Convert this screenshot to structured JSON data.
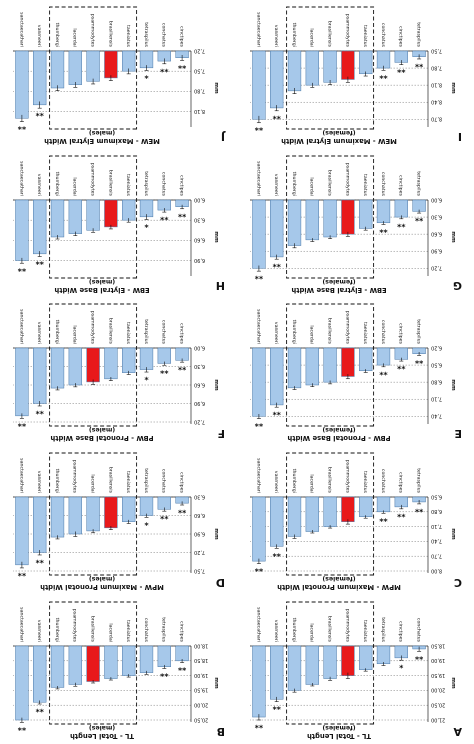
{
  "figure": {
    "bar_color": "#a6c8ea",
    "highlight_color": "#e8191b",
    "bar_edge": "#4a78a8",
    "sig_marker": "**"
  },
  "chart_data": [
    {
      "type": "bar",
      "letter": "A",
      "title": "TL - Total Length",
      "subtitle": "(females)",
      "ylabel": "mm",
      "categories": [
        "conchatus",
        "cinctipes",
        "tetraspilus",
        "taeniatus",
        "psammodytes",
        "brasiliensis",
        "lacerdai",
        "thumbergi",
        "vanmeeri",
        "sanctaecathari"
      ],
      "values": [
        18.6,
        18.9,
        19.1,
        19.3,
        19.5,
        19.6,
        19.8,
        20.0,
        20.3,
        20.9
      ],
      "errors": [
        0.08,
        0.08,
        0.06,
        0.05,
        0.1,
        0.06,
        0.05,
        0.06,
        0.08,
        0.1
      ],
      "sig": [
        "**",
        "*",
        "",
        "",
        "",
        "",
        "",
        "",
        "**",
        "**"
      ],
      "highlight": 4,
      "boxed": [
        3,
        7
      ],
      "ylim": [
        18.5,
        21.0
      ],
      "yticks": [
        "18,50",
        "19,00",
        "19,50",
        "20,00",
        "20,50",
        "21,00"
      ]
    },
    {
      "type": "bar",
      "letter": "B",
      "title": "TL - Total Length",
      "subtitle": "(males)",
      "ylabel": "mm",
      "categories": [
        "cinctipes",
        "tetraspilus",
        "conchatus",
        "taeniatus",
        "lacerdai",
        "brasiliensis",
        "psammodytes",
        "thumbergi",
        "vanmeeri",
        "sanctaecathari"
      ],
      "values": [
        18.5,
        18.7,
        18.9,
        19.0,
        19.1,
        19.2,
        19.3,
        19.4,
        19.9,
        20.5
      ],
      "errors": [
        0.06,
        0.06,
        0.06,
        0.05,
        0.05,
        0.05,
        0.06,
        0.05,
        0.06,
        0.08
      ],
      "sig": [
        "**",
        "**",
        "",
        "",
        "",
        "",
        "",
        "",
        "**",
        "**"
      ],
      "highlight": 5,
      "boxed": [
        3,
        7
      ],
      "ylim": [
        18.0,
        20.5
      ],
      "yticks": [
        "18,00",
        "18,50",
        "19,00",
        "19,50",
        "20,00",
        "20,50"
      ]
    },
    {
      "type": "bar",
      "letter": "C",
      "title": "MPW - Maximum Pronotal Width",
      "subtitle": "(females)",
      "ylabel": "mm",
      "categories": [
        "tetraspilus",
        "cinctipes",
        "conchatus",
        "taeniatus",
        "psammodytes",
        "brasiliensis",
        "lacerdai",
        "thumbergi",
        "vanmeeri",
        "sanctaecathari"
      ],
      "values": [
        6.6,
        6.7,
        6.8,
        6.9,
        7.0,
        7.1,
        7.2,
        7.3,
        7.5,
        7.8
      ],
      "errors": [
        0.04,
        0.04,
        0.03,
        0.03,
        0.05,
        0.03,
        0.03,
        0.04,
        0.04,
        0.05
      ],
      "sig": [
        "**",
        "**",
        "**",
        "",
        "",
        "",
        "",
        "",
        "**",
        "**"
      ],
      "highlight": 4,
      "boxed": [
        3,
        7
      ],
      "ylim": [
        6.5,
        8.0
      ],
      "yticks": [
        "6,50",
        "6,80",
        "7,10",
        "7,40",
        "7,70",
        "8,00"
      ]
    },
    {
      "type": "bar",
      "letter": "D",
      "title": "MPW - Maximum Pronotal Width",
      "subtitle": "(males)",
      "ylabel": "mm",
      "categories": [
        "cinctipes",
        "conchatus",
        "tetraspilus",
        "taeniatus",
        "brasiliensis",
        "lacerdai",
        "psammodytes",
        "thumbergi",
        "vanmeeri",
        "sanctaecathari"
      ],
      "values": [
        6.4,
        6.5,
        6.6,
        6.7,
        6.8,
        6.85,
        6.9,
        6.95,
        7.2,
        7.4
      ],
      "errors": [
        0.03,
        0.03,
        0.03,
        0.03,
        0.03,
        0.03,
        0.04,
        0.03,
        0.04,
        0.05
      ],
      "sig": [
        "**",
        "**",
        "*",
        "",
        "",
        "",
        "",
        "",
        "**",
        "**"
      ],
      "highlight": 4,
      "boxed": [
        3,
        7
      ],
      "ylim": [
        6.3,
        7.5
      ],
      "yticks": [
        "6,30",
        "6,60",
        "6,90",
        "7,20",
        "7,50"
      ]
    },
    {
      "type": "bar",
      "letter": "E",
      "title": "PBW - Pronotal Base Width",
      "subtitle": "(females)",
      "ylabel": "mm",
      "categories": [
        "tetraspilus",
        "cinctipes",
        "conchatus",
        "taeniatus",
        "psammodytes",
        "brasiliensis",
        "lacerdai",
        "thumbergi",
        "vanmeeri",
        "sanctaecathari"
      ],
      "values": [
        6.3,
        6.4,
        6.5,
        6.6,
        6.7,
        6.8,
        6.85,
        6.9,
        7.2,
        7.4
      ],
      "errors": [
        0.03,
        0.03,
        0.03,
        0.03,
        0.04,
        0.03,
        0.03,
        0.03,
        0.04,
        0.04
      ],
      "sig": [
        "**",
        "**",
        "**",
        "",
        "",
        "",
        "",
        "",
        "**",
        "**"
      ],
      "highlight": 4,
      "boxed": [
        3,
        7
      ],
      "ylim": [
        6.2,
        7.5
      ],
      "yticks": [
        "6,20",
        "6,50",
        "6,80",
        "7,10",
        "7,40"
      ]
    },
    {
      "type": "bar",
      "letter": "F",
      "title": "PBW - Pronotal Base Width",
      "subtitle": "(males)",
      "ylabel": "mm",
      "categories": [
        "cinctipes",
        "conchatus",
        "tetraspilus",
        "taeniatus",
        "brasiliensis",
        "psammodytes",
        "lacerdai",
        "thumbergi",
        "vanmeeri",
        "sanctaecathari"
      ],
      "values": [
        6.2,
        6.25,
        6.35,
        6.4,
        6.5,
        6.55,
        6.6,
        6.65,
        6.9,
        7.1
      ],
      "errors": [
        0.03,
        0.03,
        0.04,
        0.03,
        0.03,
        0.04,
        0.03,
        0.03,
        0.04,
        0.04
      ],
      "sig": [
        "**",
        "**",
        "*",
        "",
        "",
        "",
        "",
        "",
        "**",
        "**"
      ],
      "highlight": 5,
      "boxed": [
        3,
        7
      ],
      "ylim": [
        6.0,
        7.2
      ],
      "yticks": [
        "6,00",
        "6,30",
        "6,60",
        "6,90",
        "7,20"
      ]
    },
    {
      "type": "bar",
      "letter": "G",
      "title": "EBW - Elytral Base Width",
      "subtitle": "(females)",
      "ylabel": "mm",
      "categories": [
        "tetraspilus",
        "cinctipes",
        "conchatus",
        "taeniatus",
        "psammodytes",
        "brasiliensis",
        "lacerdai",
        "thumbergi",
        "vanmeeri",
        "sanctaecathari"
      ],
      "values": [
        6.2,
        6.3,
        6.4,
        6.5,
        6.6,
        6.65,
        6.7,
        6.8,
        7.0,
        7.2
      ],
      "errors": [
        0.03,
        0.03,
        0.03,
        0.03,
        0.04,
        0.03,
        0.03,
        0.04,
        0.04,
        0.05
      ],
      "sig": [
        "**",
        "**",
        "**",
        "",
        "",
        "",
        "",
        "",
        "**",
        "**"
      ],
      "highlight": 4,
      "boxed": [
        3,
        7
      ],
      "ylim": [
        6.0,
        7.3
      ],
      "yticks": [
        "6,00",
        "6,30",
        "6,60",
        "6,90",
        "7,20"
      ]
    },
    {
      "type": "bar",
      "letter": "H",
      "title": "EBW - Elytral Base Width",
      "subtitle": "(males)",
      "ylabel": "mm",
      "categories": [
        "cinctipes",
        "conchatus",
        "tetraspilus",
        "taeniatus",
        "brasiliensis",
        "psammodytes",
        "lacerdai",
        "thumbergi",
        "vanmeeri",
        "sanctaecathari"
      ],
      "values": [
        6.1,
        6.15,
        6.25,
        6.3,
        6.4,
        6.45,
        6.5,
        6.55,
        6.8,
        6.9
      ],
      "errors": [
        0.03,
        0.03,
        0.04,
        0.03,
        0.03,
        0.03,
        0.03,
        0.03,
        0.04,
        0.04
      ],
      "sig": [
        "**",
        "**",
        "*",
        "",
        "",
        "",
        "",
        "",
        "**",
        "**"
      ],
      "highlight": 4,
      "boxed": [
        3,
        7
      ],
      "ylim": [
        6.0,
        7.1
      ],
      "yticks": [
        "6,00",
        "6,30",
        "6,60",
        "6,90"
      ]
    },
    {
      "type": "bar",
      "letter": "I",
      "title": "MEW - Maximum Elytral Width",
      "subtitle": "(females)",
      "ylabel": "mm",
      "categories": [
        "tetraspilus",
        "cinctipes",
        "conchatus",
        "taeniatus",
        "psammodytes",
        "brasiliensis",
        "lacerdai",
        "thumbergi",
        "vanmeeri",
        "sanctaecathari"
      ],
      "values": [
        7.6,
        7.7,
        7.8,
        7.9,
        8.0,
        8.05,
        8.1,
        8.2,
        8.5,
        8.7
      ],
      "errors": [
        0.04,
        0.04,
        0.04,
        0.04,
        0.05,
        0.04,
        0.04,
        0.05,
        0.05,
        0.06
      ],
      "sig": [
        "**",
        "**",
        "**",
        "",
        "",
        "",
        "",
        "",
        "**",
        "**"
      ],
      "highlight": 4,
      "boxed": [
        3,
        7
      ],
      "ylim": [
        7.5,
        8.8
      ],
      "yticks": [
        "7,50",
        "7,80",
        "8,10",
        "8,40",
        "8,70"
      ]
    },
    {
      "type": "bar",
      "letter": "J",
      "title": "MEW - Maximum Elytral Width",
      "subtitle": "(males)",
      "ylabel": "mm",
      "categories": [
        "cinctipes",
        "conchatus",
        "tetraspilus",
        "taeniatus",
        "brasiliensis",
        "psammodytes",
        "lacerdai",
        "thumbergi",
        "vanmeeri",
        "sanctaecathari"
      ],
      "values": [
        7.3,
        7.35,
        7.45,
        7.5,
        7.6,
        7.65,
        7.7,
        7.75,
        8.0,
        8.2
      ],
      "errors": [
        0.04,
        0.04,
        0.04,
        0.04,
        0.04,
        0.04,
        0.04,
        0.04,
        0.05,
        0.05
      ],
      "sig": [
        "**",
        "**",
        "*",
        "",
        "",
        "",
        "",
        "",
        "**",
        "**"
      ],
      "highlight": 4,
      "boxed": [
        3,
        7
      ],
      "ylim": [
        7.2,
        8.3
      ],
      "yticks": [
        "7,20",
        "7,50",
        "7,80",
        "8,10"
      ]
    }
  ]
}
